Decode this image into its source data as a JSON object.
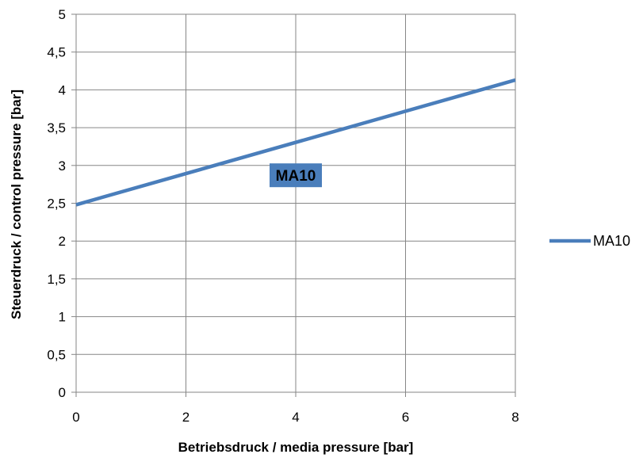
{
  "chart_data": {
    "type": "line",
    "xlabel": "Betriebsdruck / media pressure [bar]",
    "ylabel": "Steuerdruck  / control pressure [bar]",
    "xlim": [
      0,
      8
    ],
    "ylim": [
      0,
      5
    ],
    "x_ticks": [
      "0",
      "2",
      "4",
      "6",
      "8"
    ],
    "y_ticks": [
      "0",
      "0,5",
      "1",
      "1,5",
      "2",
      "2,5",
      "3",
      "3,5",
      "4",
      "4,5",
      "5"
    ],
    "grid": true,
    "legend": "right",
    "series": [
      {
        "name": "MA10",
        "x": [
          0,
          8
        ],
        "y": [
          2.48,
          4.13
        ],
        "color": "#4a7ebb"
      }
    ],
    "annotations": [
      {
        "text": "MA10",
        "x": 4,
        "y": 2.87
      }
    ]
  }
}
